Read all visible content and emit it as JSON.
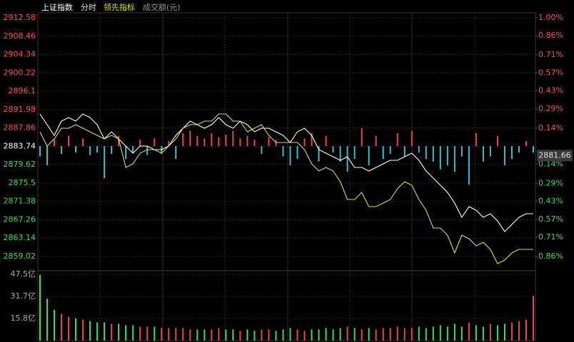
{
  "header": {
    "mode": "分时",
    "volume_label": "成交额(元)"
  },
  "chart_data": [
    {
      "type": "line",
      "ylim": [
        2859.02,
        2912.58
      ],
      "yticks": [
        2912.58,
        2908.46,
        2904.34,
        2900.22,
        2896.1,
        2891.98,
        2887.86,
        2883.74,
        2879.62,
        2875.5,
        2871.38,
        2867.26,
        2863.14,
        2859.02
      ],
      "y2lim": [
        -0.86,
        1.0
      ],
      "y2ticks": [
        {
          "value": 1.0,
          "label": "1.00%"
        },
        {
          "value": 0.86,
          "label": "0.86%"
        },
        {
          "value": 0.71,
          "label": "0.71%"
        },
        {
          "value": 0.57,
          "label": "0.57%"
        },
        {
          "value": 0.43,
          "label": "0.43%"
        },
        {
          "value": 0.29,
          "label": "0.29%"
        },
        {
          "value": 0.14,
          "label": "0.14%"
        },
        {
          "value": -0.14,
          "label": "0.14%"
        },
        {
          "value": -0.29,
          "label": "0.29%"
        },
        {
          "value": -0.43,
          "label": "0.43%"
        },
        {
          "value": -0.57,
          "label": "0.57%"
        },
        {
          "value": -0.71,
          "label": "0.71%"
        },
        {
          "value": -0.86,
          "label": "0.86%"
        }
      ],
      "up_color": "#ff5050",
      "down_color": "#3ddc5c",
      "price_tag": 2881.66,
      "series": [
        {
          "name": "上证指数",
          "color": "#ffffff",
          "values": [
            2891.0,
            2888.6,
            2886.2,
            2889.4,
            2890.2,
            2889.4,
            2891.0,
            2890.2,
            2888.6,
            2885.4,
            2887.0,
            2885.4,
            2883.8,
            2882.2,
            2883.8,
            2883.8,
            2883.0,
            2883.0,
            2883.8,
            2886.2,
            2887.8,
            2889.4,
            2888.6,
            2887.8,
            2888.6,
            2890.2,
            2888.6,
            2887.8,
            2889.4,
            2888.6,
            2887.0,
            2887.8,
            2887.8,
            2887.0,
            2886.2,
            2884.6,
            2887.0,
            2887.8,
            2886.2,
            2883.0,
            2882.2,
            2881.4,
            2880.6,
            2881.4,
            2879.01,
            2879.01,
            2878.21,
            2879.01,
            2879.8,
            2880.6,
            2880.6,
            2881.4,
            2882.2,
            2880.6,
            2878.21,
            2876.61,
            2875.01,
            2873.41,
            2871.01,
            2867.81,
            2870.21,
            2869.41,
            2867.81,
            2868.61,
            2867.01,
            2864.62,
            2866.21,
            2867.81,
            2868.61,
            2868.61
          ]
        },
        {
          "name": "领先指标",
          "color": "#e6dc3c",
          "values": [
            2887.0,
            2883.8,
            2885.4,
            2887.8,
            2887.8,
            2888.6,
            2887.8,
            2887.0,
            2886.2,
            2885.4,
            2886.2,
            2885.4,
            2879.01,
            2879.8,
            2882.2,
            2883.0,
            2883.0,
            2882.2,
            2883.8,
            2885.4,
            2887.8,
            2888.6,
            2888.6,
            2889.4,
            2889.4,
            2891.0,
            2891.0,
            2889.4,
            2889.4,
            2887.0,
            2887.8,
            2888.6,
            2886.2,
            2884.6,
            2884.6,
            2884.6,
            2884.6,
            2883.0,
            2879.8,
            2878.21,
            2879.01,
            2878.21,
            2875.81,
            2871.81,
            2871.81,
            2873.41,
            2870.21,
            2870.21,
            2871.01,
            2871.81,
            2874.21,
            2875.81,
            2875.01,
            2871.81,
            2869.41,
            2865.42,
            2865.42,
            2863.82,
            2859.82,
            2863.82,
            2863.02,
            2861.42,
            2862.22,
            2860.62,
            2857.42,
            2858.22,
            2859.82,
            2860.62,
            2860.62,
            2860.62
          ]
        }
      ],
      "bars": {
        "axis": "y2",
        "up_color": "#e8474a",
        "down_color": "#3fbcd0",
        "values": [
          -0.08,
          -0.15,
          0.05,
          -0.06,
          0.08,
          -0.05,
          0.06,
          -0.07,
          -0.05,
          -0.25,
          -0.06,
          0.08,
          -0.1,
          -0.05,
          0.05,
          -0.07,
          0.06,
          -0.06,
          0.04,
          -0.1,
          0.1,
          0.12,
          0.08,
          0.06,
          0.1,
          0.07,
          0.09,
          0.12,
          0.06,
          0.08,
          0.05,
          -0.06,
          0.07,
          0.05,
          -0.08,
          -0.15,
          -0.1,
          0.06,
          0.1,
          -0.12,
          0.08,
          -0.05,
          -0.12,
          -0.2,
          -0.1,
          0.14,
          -0.15,
          0.08,
          -0.1,
          -0.06,
          0.1,
          -0.08,
          0.12,
          -0.05,
          -0.1,
          -0.12,
          -0.18,
          -0.15,
          -0.2,
          -0.08,
          -0.3,
          0.1,
          -0.12,
          -0.08,
          0.08,
          -0.15,
          -0.1,
          -0.05,
          0.04,
          -0.05
        ]
      }
    },
    {
      "type": "bar",
      "ylim": [
        0,
        47.5
      ],
      "yticks": [
        {
          "value": 15.8,
          "label": "15.8亿"
        },
        {
          "value": 31.7,
          "label": "31.7亿"
        },
        {
          "value": 47.5,
          "label": "47.5亿"
        }
      ],
      "up_color": "#e8474a",
      "down_color": "#3ddc5c",
      "values": [
        47,
        30,
        22,
        19,
        17,
        16,
        15,
        14,
        13,
        13,
        12,
        12,
        11,
        11,
        10,
        10,
        10,
        9,
        9,
        9,
        9,
        8,
        8,
        8,
        8,
        9,
        8,
        8,
        7,
        8,
        7,
        8,
        8,
        7,
        8,
        9,
        8,
        7,
        8,
        8,
        9,
        8,
        9,
        10,
        9,
        8,
        9,
        8,
        9,
        9,
        10,
        9,
        9,
        10,
        9,
        10,
        11,
        10,
        12,
        10,
        13,
        11,
        10,
        12,
        11,
        12,
        13,
        14,
        15,
        32
      ]
    }
  ]
}
